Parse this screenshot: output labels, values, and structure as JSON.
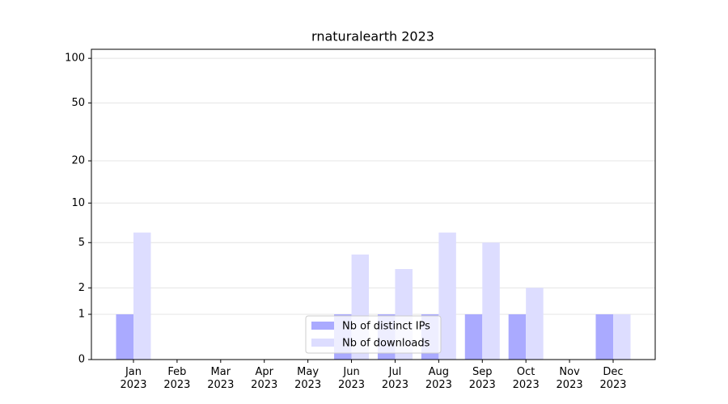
{
  "chart_data": {
    "type": "bar",
    "title": "rnaturalearth 2023",
    "categories": [
      "Jan\n2023",
      "Feb\n2023",
      "Mar\n2023",
      "Apr\n2023",
      "May\n2023",
      "Jun\n2023",
      "Jul\n2023",
      "Aug\n2023",
      "Sep\n2023",
      "Oct\n2023",
      "Nov\n2023",
      "Dec\n2023"
    ],
    "series": [
      {
        "name": "Nb of distinct IPs",
        "color": "#aaaaff",
        "values": [
          1,
          0,
          0,
          0,
          0,
          1,
          1,
          1,
          1,
          1,
          0,
          1
        ]
      },
      {
        "name": "Nb of downloads",
        "color": "#ddddff",
        "values": [
          6,
          0,
          0,
          0,
          0,
          4,
          3,
          6,
          5,
          2,
          0,
          1
        ]
      }
    ],
    "yscale": "log1p",
    "ylim": [
      0,
      115
    ],
    "yticks": [
      0,
      1,
      2,
      5,
      10,
      20,
      50,
      100
    ],
    "grid": true,
    "legend": "lower center"
  }
}
